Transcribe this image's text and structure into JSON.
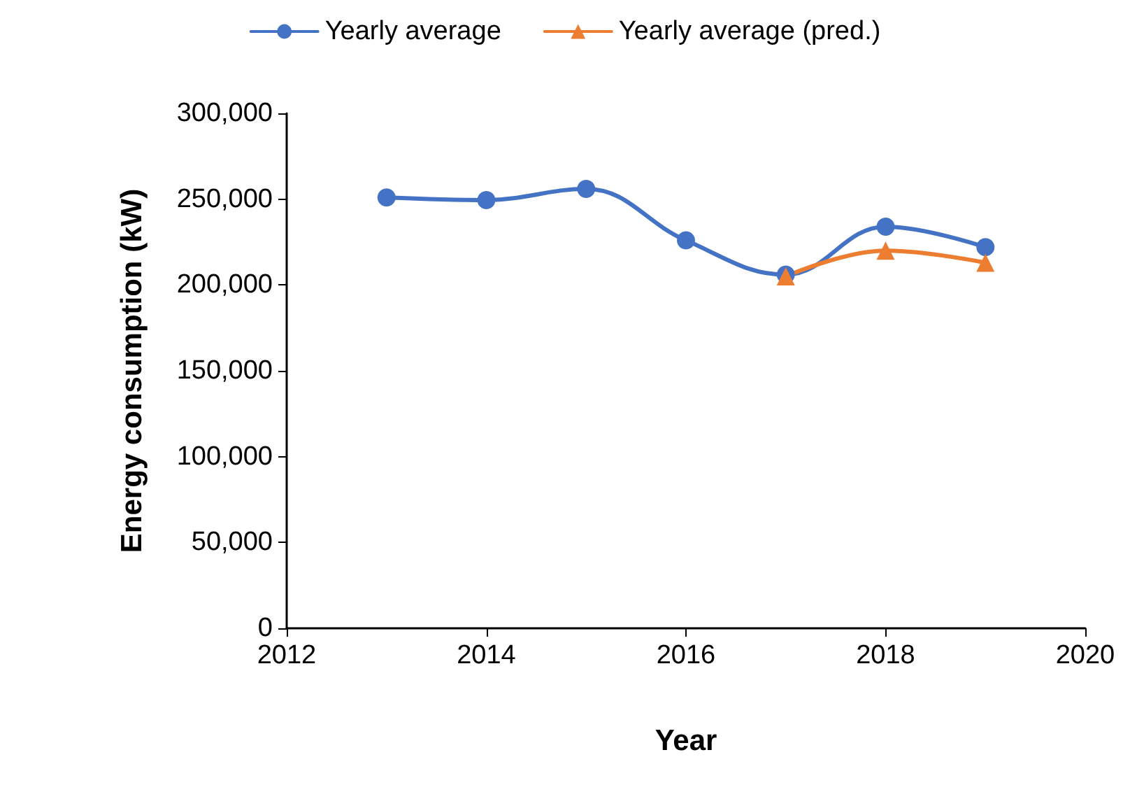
{
  "chart_data": {
    "type": "line",
    "xlabel": "Year",
    "ylabel": "Energy consumption (kW)",
    "x": [
      2013,
      2014,
      2015,
      2016,
      2017,
      2018,
      2019
    ],
    "series": [
      {
        "name": "Yearly average",
        "color": "#4472c4",
        "marker": "circle",
        "values": [
          251000,
          249500,
          256000,
          226000,
          206000,
          234000,
          222000
        ]
      },
      {
        "name": "Yearly average (pred.)",
        "color": "#ed7d31",
        "marker": "triangle",
        "x": [
          2017,
          2018,
          2019
        ],
        "values": [
          205000,
          220000,
          213000
        ]
      }
    ],
    "xlim": [
      2012,
      2020
    ],
    "xticks": [
      2012,
      2014,
      2016,
      2018,
      2020
    ],
    "ylim": [
      0,
      300000
    ],
    "yticks": [
      {
        "value": 0,
        "label": "0"
      },
      {
        "value": 50000,
        "label": "50,000"
      },
      {
        "value": 100000,
        "label": "100,000"
      },
      {
        "value": 150000,
        "label": "150,000"
      },
      {
        "value": 200000,
        "label": "200,000"
      },
      {
        "value": 250000,
        "label": "250,000"
      },
      {
        "value": 300000,
        "label": "300,000"
      }
    ],
    "grid": false,
    "legend": "top",
    "line_style": "solid"
  }
}
